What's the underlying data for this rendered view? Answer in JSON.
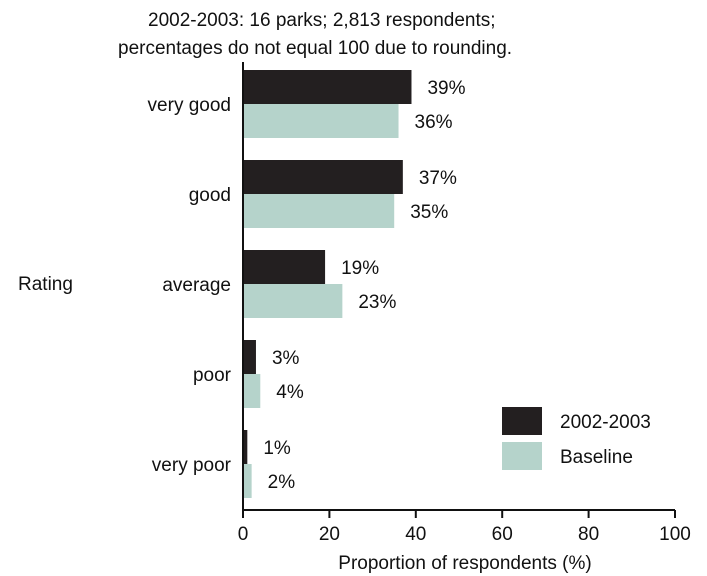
{
  "chart_data": {
    "type": "bar",
    "orientation": "horizontal",
    "subtitle_lines": [
      "2002-2003:  16 parks; 2,813 respondents;",
      "percentages do not equal 100 due to rounding."
    ],
    "categories": [
      "very good",
      "good",
      "average",
      "poor",
      "very poor"
    ],
    "series": [
      {
        "name": "2002-2003",
        "color": "#231f20",
        "values": [
          39,
          37,
          19,
          3,
          1
        ],
        "labels": [
          "39%",
          "37%",
          "19%",
          "3%",
          "1%"
        ]
      },
      {
        "name": "Baseline",
        "color": "#b5d3cb",
        "values": [
          36,
          35,
          23,
          4,
          2
        ],
        "labels": [
          "36%",
          "35%",
          "23%",
          "4%",
          "2%"
        ]
      }
    ],
    "xlabel": "Proportion of respondents (%)",
    "ylabel": "Rating",
    "xlim": [
      0,
      100
    ],
    "xticks": [
      0,
      20,
      40,
      60,
      80,
      100
    ],
    "xtick_labels": [
      "0",
      "20",
      "40",
      "60",
      "80",
      "100"
    ],
    "grid": false,
    "legend_position": "bottom-right"
  }
}
